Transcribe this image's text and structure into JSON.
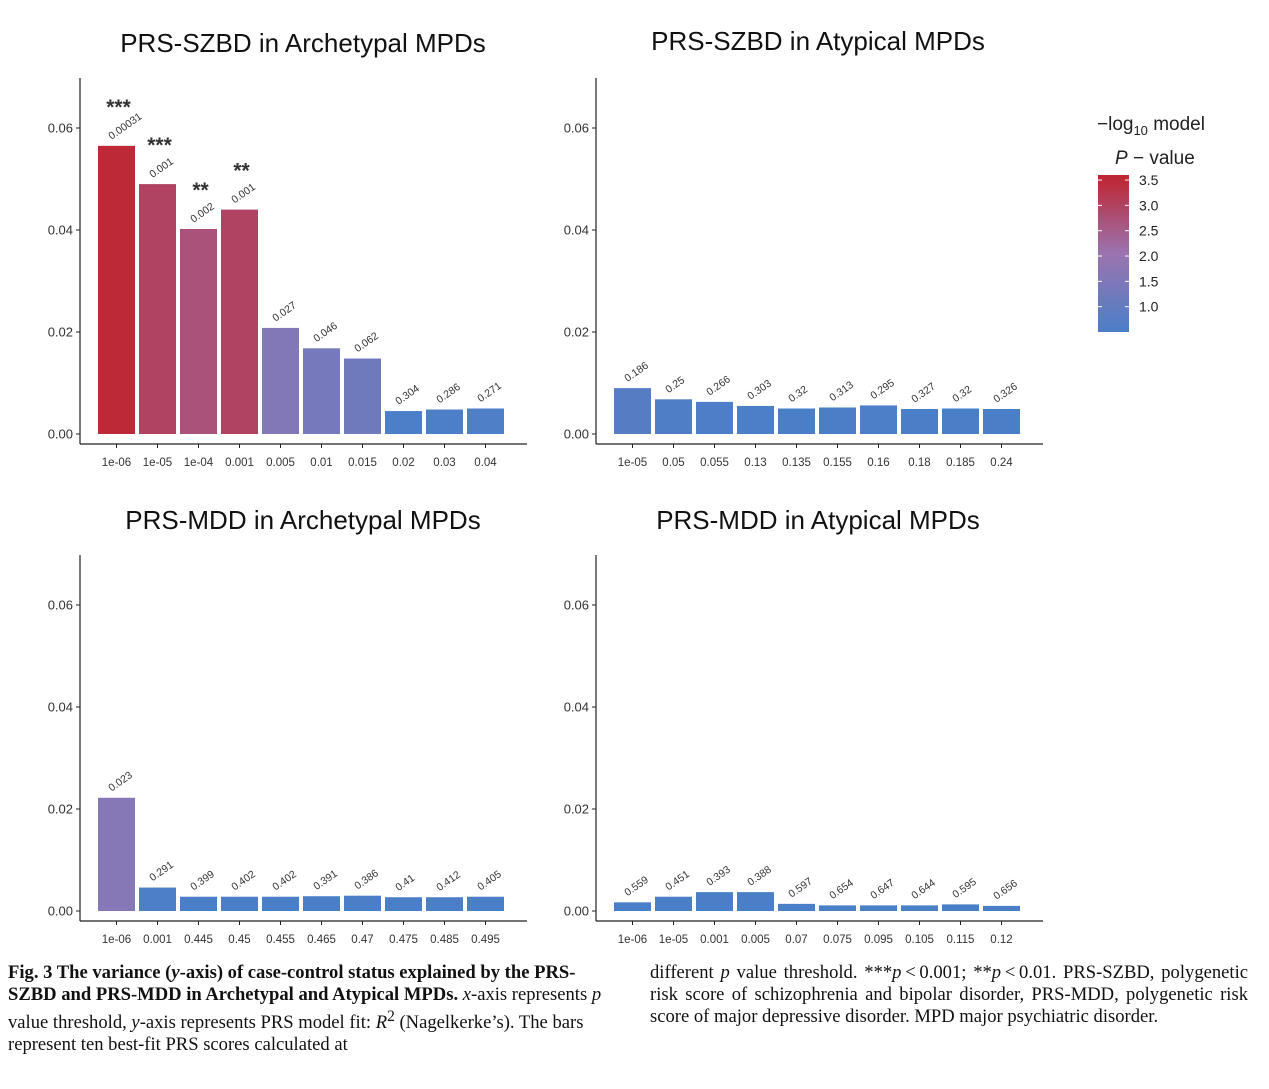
{
  "chart_data": [
    {
      "type": "bar",
      "title": "PRS-SZBD in Archetypal MPDs",
      "categories": [
        "1e-06",
        "1e-05",
        "1e-04",
        "0.001",
        "0.005",
        "0.01",
        "0.015",
        "0.02",
        "0.03",
        "0.04"
      ],
      "values": [
        0.0565,
        0.049,
        0.0402,
        0.044,
        0.0208,
        0.0168,
        0.0148,
        0.0045,
        0.0048,
        0.005
      ],
      "bar_labels": [
        "0.00031",
        "0.001",
        "0.002",
        "0.001",
        "0.027",
        "0.046",
        "0.062",
        "0.304",
        "0.286",
        "0.271"
      ],
      "neg_log10_p": [
        3.51,
        3.0,
        2.7,
        3.0,
        1.57,
        1.34,
        1.21,
        0.52,
        0.54,
        0.57
      ],
      "significance": [
        "***",
        "***",
        "**",
        "**",
        "",
        "",
        "",
        "",
        "",
        ""
      ],
      "ylim": [
        0,
        0.07
      ],
      "yticks": [
        "0.00",
        "0.02",
        "0.04",
        "0.06"
      ],
      "xlabel": "",
      "ylabel": ""
    },
    {
      "type": "bar",
      "title": "PRS-SZBD in Atypical MPDs",
      "categories": [
        "1e-05",
        "0.05",
        "0.055",
        "0.13",
        "0.135",
        "0.155",
        "0.16",
        "0.18",
        "0.185",
        "0.24"
      ],
      "values": [
        0.009,
        0.0068,
        0.0063,
        0.0055,
        0.005,
        0.0052,
        0.0056,
        0.0049,
        0.005,
        0.0049
      ],
      "bar_labels": [
        "0.186",
        "0.25",
        "0.266",
        "0.303",
        "0.32",
        "0.313",
        "0.295",
        "0.327",
        "0.32",
        "0.326"
      ],
      "neg_log10_p": [
        0.73,
        0.6,
        0.58,
        0.52,
        0.49,
        0.5,
        0.53,
        0.49,
        0.49,
        0.49
      ],
      "significance": [
        "",
        "",
        "",
        "",
        "",
        "",
        "",
        "",
        "",
        ""
      ],
      "ylim": [
        0,
        0.07
      ],
      "yticks": [
        "0.00",
        "0.02",
        "0.04",
        "0.06"
      ],
      "xlabel": "",
      "ylabel": ""
    },
    {
      "type": "bar",
      "title": "PRS-MDD in Archetypal MPDs",
      "categories": [
        "1e-06",
        "0.001",
        "0.445",
        "0.45",
        "0.455",
        "0.465",
        "0.47",
        "0.475",
        "0.485",
        "0.495"
      ],
      "values": [
        0.0222,
        0.0046,
        0.0028,
        0.0028,
        0.0028,
        0.0029,
        0.003,
        0.0027,
        0.0027,
        0.0028
      ],
      "bar_labels": [
        "0.023",
        "0.291",
        "0.399",
        "0.402",
        "0.402",
        "0.391",
        "0.386",
        "0.41",
        "0.412",
        "0.405"
      ],
      "neg_log10_p": [
        1.64,
        0.54,
        0.4,
        0.4,
        0.4,
        0.41,
        0.41,
        0.39,
        0.39,
        0.39
      ],
      "significance": [
        "",
        "",
        "",
        "",
        "",
        "",
        "",
        "",
        "",
        ""
      ],
      "ylim": [
        0,
        0.07
      ],
      "yticks": [
        "0.00",
        "0.02",
        "0.04",
        "0.06"
      ],
      "xlabel": "",
      "ylabel": ""
    },
    {
      "type": "bar",
      "title": "PRS-MDD in Atypical MPDs",
      "categories": [
        "1e-06",
        "1e-05",
        "0.001",
        "0.005",
        "0.07",
        "0.075",
        "0.095",
        "0.105",
        "0.115",
        "0.12"
      ],
      "values": [
        0.0017,
        0.0028,
        0.0037,
        0.0037,
        0.0014,
        0.0011,
        0.0011,
        0.0011,
        0.0013,
        0.001
      ],
      "bar_labels": [
        "0.559",
        "0.451",
        "0.393",
        "0.388",
        "0.597",
        "0.654",
        "0.647",
        "0.644",
        "0.595",
        "0.656"
      ],
      "neg_log10_p": [
        0.25,
        0.35,
        0.41,
        0.41,
        0.22,
        0.18,
        0.19,
        0.19,
        0.23,
        0.18
      ],
      "significance": [
        "",
        "",
        "",
        "",
        "",
        "",
        "",
        "",
        "",
        ""
      ],
      "ylim": [
        0,
        0.07
      ],
      "yticks": [
        "0.00",
        "0.02",
        "0.04",
        "0.06"
      ],
      "xlabel": "",
      "ylabel": ""
    }
  ],
  "legend": {
    "title_line1_prefix": "−log",
    "title_line1_sub": "10",
    "title_line1_suffix": " model",
    "title_line2_p": "P",
    "title_line2_rest": " − value",
    "ticks": [
      "3.5",
      "3.0",
      "2.5",
      "2.0",
      "1.5",
      "1.0"
    ],
    "tick_values": [
      3.5,
      3.0,
      2.5,
      2.0,
      1.5,
      1.0
    ],
    "range": [
      0.5,
      3.6
    ],
    "color_low": "#4a7fc8",
    "color_mid": "#9b74b0",
    "color_high": "#bf2430"
  },
  "caption": {
    "fig_label": "Fig. 3",
    "bold_text": " The variance (",
    "bold_y": "y",
    "bold_text2": "-axis) of case-control status explained by the PRS-SZBD and PRS-MDD in Archetypal and Atypical MPDs.",
    "t1": " ",
    "x": "x",
    "t2": "-axis represents ",
    "p1": "p",
    "t3": " value threshold, ",
    "y": "y",
    "t4": "-axis represents PRS model fit: ",
    "R": "R",
    "sup": "2",
    "t5": " (Nagelkerke’s). The bars represent ten best-fit PRS scores calculated at",
    "r1": "different ",
    "p2": "p",
    "r2": " value threshold. ***",
    "p3": "p",
    "r3": " < 0.001; **",
    "p4": "p",
    "r4": " < 0.01. PRS-SZBD, polygenetic risk score of schizophrenia and bipolar disorder, PRS-MDD, polygenetic risk score of major depressive disorder. MPD major psychiatric disorder."
  }
}
